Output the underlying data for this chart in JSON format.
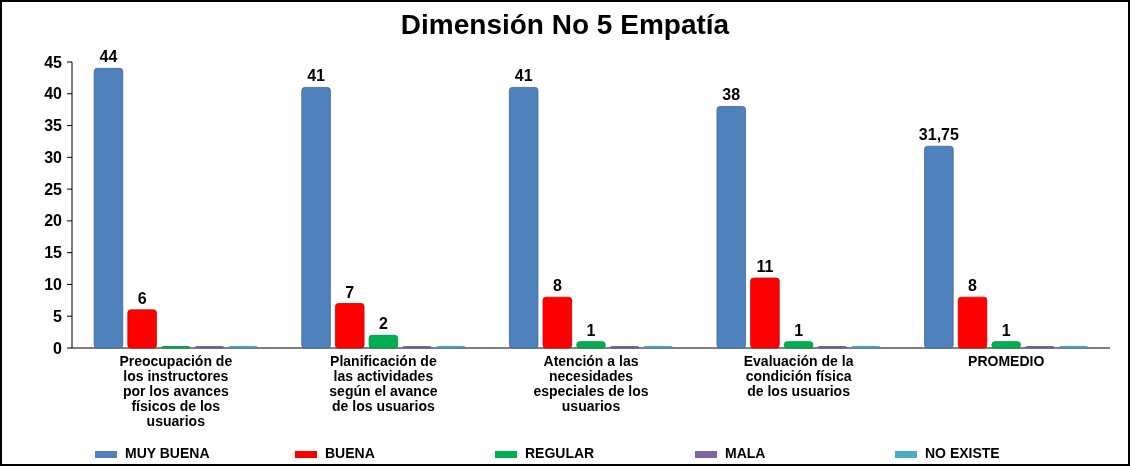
{
  "chart_data": {
    "type": "bar",
    "title": "Dimensión No 5 Empatía",
    "categories": [
      "Preocupación de los instructores por los avances físicos de los usuarios",
      "Planificación de las actividades según el avance de los usuarios",
      "Atención a las necesidades especiales de los usuarios",
      "Evaluación de la condición física de los usuarios",
      "PROMEDIO"
    ],
    "series": [
      {
        "name": "MUY BUENA",
        "color": "#4f81bd",
        "values": [
          44,
          41,
          41,
          38,
          31.75
        ],
        "value_labels": [
          "44",
          "41",
          "41",
          "38",
          "31,75"
        ]
      },
      {
        "name": "BUENA",
        "color": "#ff0000",
        "values": [
          6,
          7,
          8,
          11,
          8
        ],
        "value_labels": [
          "6",
          "7",
          "8",
          "11",
          "8"
        ]
      },
      {
        "name": "REGULAR",
        "color": "#00b050",
        "values": [
          0,
          2,
          1,
          1,
          1
        ],
        "value_labels": [
          null,
          "2",
          "1",
          "1",
          "1"
        ]
      },
      {
        "name": "MALA",
        "color": "#8064a2",
        "values": [
          0,
          0,
          0,
          0,
          0
        ],
        "value_labels": [
          null,
          null,
          null,
          null,
          null
        ]
      },
      {
        "name": "NO EXISTE",
        "color": "#4bacc6",
        "values": [
          0,
          0,
          0,
          0,
          0
        ],
        "value_labels": [
          null,
          null,
          null,
          null,
          null
        ]
      }
    ],
    "ylim": [
      0,
      45
    ],
    "yticks": [
      0,
      5,
      10,
      15,
      20,
      25,
      30,
      35,
      40,
      45
    ],
    "grid": false,
    "legend": "bottom"
  }
}
